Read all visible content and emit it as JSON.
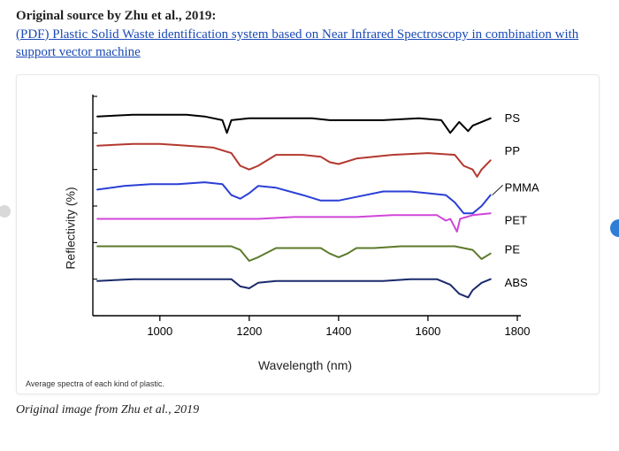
{
  "source": {
    "prefix": "Original source by Zhu et al., 2019:",
    "link_text": "(PDF) Plastic Solid Waste identification system based on Near Infrared Spectroscopy in combination with support vector machine",
    "link_color": "#1a4ab6"
  },
  "chart": {
    "type": "line",
    "xlabel": "Wavelength (nm)",
    "ylabel": "Reflectivity (%)",
    "label_fontsize": 14,
    "xlim": [
      850,
      1800
    ],
    "ylim": [
      0,
      120
    ],
    "xticks": [
      1000,
      1200,
      1400,
      1600,
      1800
    ],
    "tick_fontsize": 13,
    "axis_color": "#000000",
    "background_color": "#ffffff",
    "line_width": 2.0,
    "series_label_fontsize": 13,
    "series": [
      {
        "label": "PS",
        "color": "#000000",
        "baseline": 108,
        "x": [
          860,
          940,
          1000,
          1060,
          1100,
          1140,
          1150,
          1160,
          1200,
          1280,
          1340,
          1380,
          1420,
          1500,
          1580,
          1630,
          1650,
          1670,
          1690,
          1700,
          1720,
          1740
        ],
        "y": [
          109,
          110,
          110,
          110,
          109,
          107,
          100,
          107,
          108,
          108,
          108,
          107,
          107,
          107,
          108,
          107,
          100,
          106,
          101,
          104,
          106,
          108
        ]
      },
      {
        "label": "PP",
        "color": "#b4382f",
        "baseline": 90,
        "x": [
          860,
          940,
          1000,
          1060,
          1120,
          1160,
          1180,
          1200,
          1220,
          1260,
          1320,
          1360,
          1380,
          1400,
          1440,
          1520,
          1600,
          1660,
          1680,
          1700,
          1710,
          1720,
          1740
        ],
        "y": [
          93,
          94,
          94,
          93,
          92,
          89,
          82,
          80,
          82,
          88,
          88,
          87,
          84,
          83,
          86,
          88,
          89,
          88,
          82,
          80,
          76,
          80,
          85
        ]
      },
      {
        "label": "PMMA",
        "color": "#2a3fd6",
        "baseline": 70,
        "x": [
          860,
          920,
          980,
          1040,
          1100,
          1140,
          1160,
          1180,
          1200,
          1220,
          1260,
          1320,
          1360,
          1400,
          1440,
          1500,
          1560,
          1600,
          1640,
          1660,
          1680,
          1700,
          1720,
          1740
        ],
        "y": [
          69,
          71,
          72,
          72,
          73,
          72,
          66,
          64,
          67,
          71,
          70,
          66,
          63,
          63,
          65,
          68,
          68,
          67,
          66,
          62,
          56,
          56,
          60,
          66
        ]
      },
      {
        "label": "PET",
        "color": "#d045d8",
        "baseline": 52,
        "x": [
          860,
          940,
          1020,
          1100,
          1160,
          1220,
          1300,
          1380,
          1440,
          1520,
          1580,
          1620,
          1640,
          1650,
          1665,
          1672,
          1700,
          1740
        ],
        "y": [
          53,
          53,
          53,
          53,
          53,
          53,
          54,
          54,
          54,
          55,
          55,
          55,
          52,
          53,
          46,
          53,
          55,
          56
        ]
      },
      {
        "label": "PE",
        "color": "#5d7a2a",
        "baseline": 36,
        "x": [
          860,
          940,
          1000,
          1060,
          1120,
          1160,
          1180,
          1200,
          1220,
          1260,
          1320,
          1360,
          1380,
          1400,
          1420,
          1440,
          1480,
          1540,
          1600,
          1660,
          1700,
          1720,
          1740
        ],
        "y": [
          38,
          38,
          38,
          38,
          38,
          38,
          36,
          30,
          32,
          37,
          37,
          37,
          34,
          32,
          34,
          37,
          37,
          38,
          38,
          38,
          36,
          31,
          34
        ]
      },
      {
        "label": "ABS",
        "color": "#1b2a6b",
        "baseline": 18,
        "x": [
          860,
          940,
          1000,
          1060,
          1120,
          1160,
          1180,
          1200,
          1220,
          1260,
          1320,
          1380,
          1440,
          1500,
          1560,
          1620,
          1650,
          1670,
          1690,
          1700,
          1720,
          1740
        ],
        "y": [
          19,
          20,
          20,
          20,
          20,
          20,
          16,
          15,
          18,
          19,
          19,
          19,
          19,
          19,
          20,
          20,
          17,
          12,
          10,
          14,
          18,
          20
        ]
      }
    ]
  },
  "subcaption": "Average spectra of each kind of plastic.",
  "caption": "Original image from Zhu et al., 2019"
}
